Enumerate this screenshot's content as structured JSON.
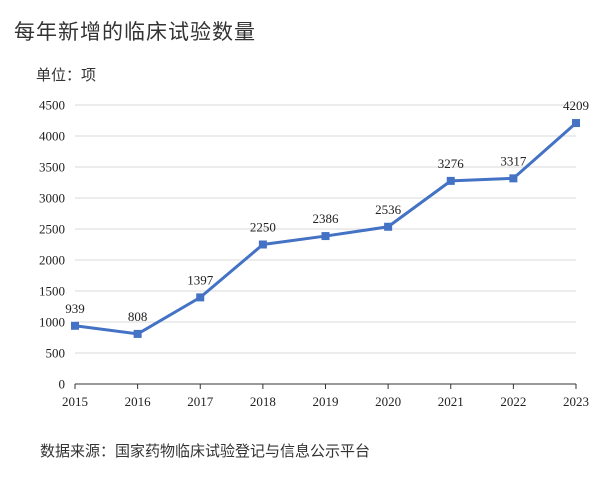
{
  "header": {
    "title": "每年新增的临床试验数量",
    "unit_label": "单位：项"
  },
  "footer": {
    "source": "数据来源：国家药物临床试验登记与信息公示平台"
  },
  "colors": {
    "line": "#4472C4",
    "grid": "#d9d9d9",
    "axis": "#333333"
  },
  "chart_data": {
    "type": "line",
    "title": "每年新增的临床试验数量",
    "xlabel": "",
    "ylabel": "单位：项",
    "categories": [
      "2015",
      "2016",
      "2017",
      "2018",
      "2019",
      "2020",
      "2021",
      "2022",
      "2023"
    ],
    "series": [
      {
        "values": [
          939,
          808,
          1397,
          2250,
          2386,
          2536,
          3276,
          3317,
          4209
        ]
      }
    ],
    "ylim": [
      0,
      4500
    ],
    "yticks": [
      0,
      500,
      1000,
      1500,
      2000,
      2500,
      3000,
      3500,
      4000,
      4500
    ],
    "grid": true,
    "data_labels": true,
    "marker": "square"
  }
}
